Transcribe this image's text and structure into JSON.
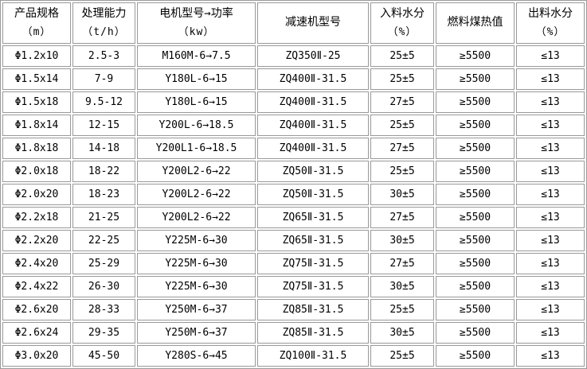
{
  "chart_data": {
    "type": "table",
    "columns": [
      {
        "title": "产品规格",
        "unit": "（m）"
      },
      {
        "title": "处理能力",
        "unit": "（t/h）"
      },
      {
        "title": "电机型号→功率",
        "unit": "（kw）"
      },
      {
        "title": "减速机型号"
      },
      {
        "title": "入料水分",
        "unit": "（%）"
      },
      {
        "title": "燃料煤热值"
      },
      {
        "title": "出料水分",
        "unit": "（%）"
      }
    ],
    "rows": [
      [
        "Φ1.2x10",
        "2.5-3",
        "M160M-6→7.5",
        "ZQ350Ⅱ-25",
        "25±5",
        "≥5500",
        "≤13"
      ],
      [
        "Φ1.5x14",
        "7-9",
        "Y180L-6→15",
        "ZQ400Ⅱ-31.5",
        "25±5",
        "≥5500",
        "≤13"
      ],
      [
        "Φ1.5x18",
        "9.5-12",
        "Y180L-6→15",
        "ZQ400Ⅱ-31.5",
        "27±5",
        "≥5500",
        "≤13"
      ],
      [
        "Φ1.8x14",
        "12-15",
        "Y200L-6→18.5",
        "ZQ400Ⅱ-31.5",
        "25±5",
        "≥5500",
        "≤13"
      ],
      [
        "Φ1.8x18",
        "14-18",
        "Y200L1-6→18.5",
        "ZQ400Ⅱ-31.5",
        "27±5",
        "≥5500",
        "≤13"
      ],
      [
        "Φ2.0x18",
        "18-22",
        "Y200L2-6→22",
        "ZQ50Ⅱ-31.5",
        "25±5",
        "≥5500",
        "≤13"
      ],
      [
        "Φ2.0x20",
        "18-23",
        "Y200L2-6→22",
        "ZQ50Ⅱ-31.5",
        "30±5",
        "≥5500",
        "≤13"
      ],
      [
        "Φ2.2x18",
        "21-25",
        "Y200L2-6→22",
        "ZQ65Ⅱ-31.5",
        "27±5",
        "≥5500",
        "≤13"
      ],
      [
        "Φ2.2x20",
        "22-25",
        "Y225M-6→30",
        "ZQ65Ⅱ-31.5",
        "30±5",
        "≥5500",
        "≤13"
      ],
      [
        "Φ2.4x20",
        "25-29",
        "Y225M-6→30",
        "ZQ75Ⅱ-31.5",
        "27±5",
        "≥5500",
        "≤13"
      ],
      [
        "Φ2.4x22",
        "26-30",
        "Y225M-6→30",
        "ZQ75Ⅱ-31.5",
        "30±5",
        "≥5500",
        "≤13"
      ],
      [
        "Φ2.6x20",
        "28-33",
        "Y250M-6→37",
        "ZQ85Ⅱ-31.5",
        "25±5",
        "≥5500",
        "≤13"
      ],
      [
        "Φ2.6x24",
        "29-35",
        "Y250M-6→37",
        "ZQ85Ⅱ-31.5",
        "30±5",
        "≥5500",
        "≤13"
      ],
      [
        "Φ3.0x20",
        "45-50",
        "Y280S-6→45",
        "ZQ100Ⅱ-31.5",
        "25±5",
        "≥5500",
        "≤13"
      ]
    ]
  },
  "colors": {
    "border": "#999999",
    "text": "#000000",
    "background": "#ffffff"
  }
}
